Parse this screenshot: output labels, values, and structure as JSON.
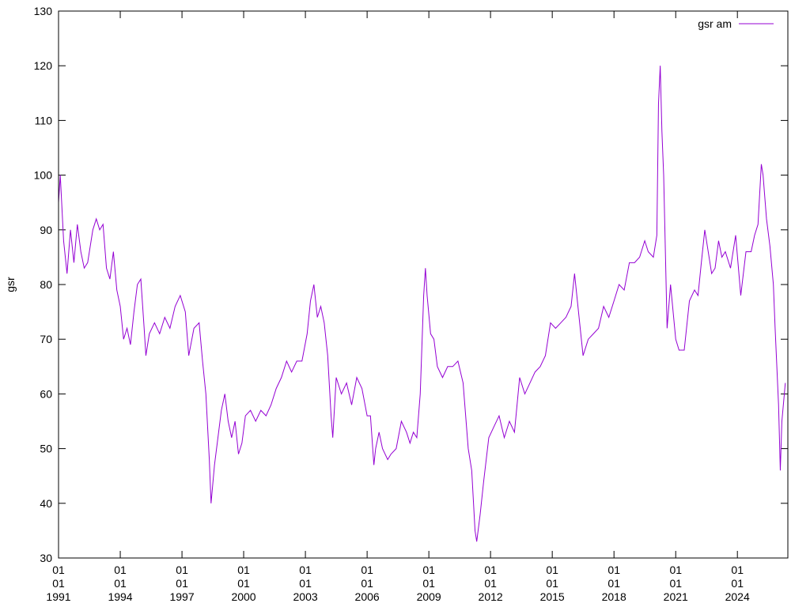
{
  "chart_data": {
    "type": "line",
    "ylabel": "gsr",
    "ylim": [
      30,
      130
    ],
    "yticks": [
      30,
      40,
      50,
      60,
      70,
      80,
      90,
      100,
      110,
      120,
      130
    ],
    "xlim": [
      "1991-01-01",
      "2026-06-15"
    ],
    "xticks": [
      {
        "value": "1991-01-01",
        "label": "01\n01\n1991"
      },
      {
        "value": "1994-01-01",
        "label": "01\n01\n1994"
      },
      {
        "value": "1997-01-01",
        "label": "01\n01\n1997"
      },
      {
        "value": "2000-01-01",
        "label": "01\n01\n2000"
      },
      {
        "value": "2003-01-01",
        "label": "01\n01\n2003"
      },
      {
        "value": "2006-01-01",
        "label": "01\n01\n2006"
      },
      {
        "value": "2009-01-01",
        "label": "01\n01\n2009"
      },
      {
        "value": "2012-01-01",
        "label": "01\n01\n2012"
      },
      {
        "value": "2015-01-01",
        "label": "01\n01\n2015"
      },
      {
        "value": "2018-01-01",
        "label": "01\n01\n2018"
      },
      {
        "value": "2021-01-01",
        "label": "01\n01\n2021"
      },
      {
        "value": "2024-01-01",
        "label": "01\n01\n2024"
      }
    ],
    "legend": "top-right",
    "x": [
      "1991-01",
      "1991-02",
      "1991-04",
      "1991-06",
      "1991-08",
      "1991-10",
      "1991-12",
      "1992-02",
      "1992-04",
      "1992-06",
      "1992-09",
      "1992-11",
      "1993-01",
      "1993-03",
      "1993-05",
      "1993-07",
      "1993-09",
      "1993-11",
      "1994-01",
      "1994-03",
      "1994-05",
      "1994-07",
      "1994-09",
      "1994-11",
      "1995-01",
      "1995-03",
      "1995-04",
      "1995-06",
      "1995-09",
      "1995-12",
      "1996-03",
      "1996-06",
      "1996-09",
      "1996-12",
      "1997-03",
      "1997-05",
      "1997-08",
      "1997-11",
      "1998-01",
      "1998-03",
      "1998-05",
      "1998-06",
      "1998-08",
      "1998-10",
      "1998-12",
      "1999-02",
      "1999-04",
      "1999-06",
      "1999-08",
      "1999-10",
      "1999-12",
      "2000-02",
      "2000-05",
      "2000-08",
      "2000-11",
      "2001-02",
      "2001-05",
      "2001-08",
      "2001-11",
      "2002-02",
      "2002-05",
      "2002-08",
      "2002-11",
      "2003-02",
      "2003-04",
      "2003-06",
      "2003-08",
      "2003-10",
      "2003-12",
      "2004-02",
      "2004-04",
      "2004-05",
      "2004-07",
      "2004-10",
      "2005-01",
      "2005-04",
      "2005-07",
      "2005-10",
      "2006-01",
      "2006-03",
      "2006-05",
      "2006-06",
      "2006-08",
      "2006-10",
      "2007-01",
      "2007-03",
      "2007-06",
      "2007-09",
      "2007-12",
      "2008-02",
      "2008-04",
      "2008-06",
      "2008-08",
      "2008-10",
      "2008-11",
      "2008-12",
      "2009-02",
      "2009-04",
      "2009-06",
      "2009-09",
      "2009-12",
      "2010-03",
      "2010-06",
      "2010-09",
      "2010-12",
      "2011-02",
      "2011-04",
      "2011-05",
      "2011-07",
      "2011-09",
      "2011-12",
      "2012-03",
      "2012-06",
      "2012-09",
      "2012-12",
      "2013-03",
      "2013-06",
      "2013-09",
      "2013-12",
      "2014-03",
      "2014-06",
      "2014-09",
      "2014-12",
      "2015-03",
      "2015-06",
      "2015-09",
      "2015-12",
      "2016-02",
      "2016-04",
      "2016-07",
      "2016-10",
      "2017-01",
      "2017-04",
      "2017-07",
      "2017-10",
      "2018-01",
      "2018-04",
      "2018-07",
      "2018-10",
      "2019-01",
      "2019-04",
      "2019-07",
      "2019-09",
      "2019-12",
      "2020-02",
      "2020-03",
      "2020-04",
      "2020-05",
      "2020-06",
      "2020-08",
      "2020-10",
      "2021-01",
      "2021-03",
      "2021-06",
      "2021-09",
      "2021-12",
      "2022-02",
      "2022-04",
      "2022-06",
      "2022-08",
      "2022-10",
      "2022-12",
      "2023-02",
      "2023-04",
      "2023-06",
      "2023-09",
      "2023-12",
      "2024-03",
      "2024-06",
      "2024-09",
      "2024-11",
      "2025-01",
      "2025-03",
      "2025-04",
      "2025-06",
      "2025-08",
      "2025-10",
      "2025-11",
      "2026-01",
      "2026-02",
      "2026-03",
      "2026-05"
    ],
    "series": [
      {
        "name": "gsr am",
        "color": "#9400d3",
        "values": [
          95,
          100,
          88,
          82,
          90,
          84,
          91,
          86,
          83,
          84,
          90,
          92,
          90,
          91,
          83,
          81,
          86,
          79,
          76,
          70,
          72,
          69,
          75,
          80,
          81,
          72,
          67,
          71,
          73,
          71,
          74,
          72,
          76,
          78,
          75,
          67,
          72,
          73,
          66,
          60,
          48,
          40,
          47,
          52,
          57,
          60,
          55,
          52,
          55,
          49,
          51,
          56,
          57,
          55,
          57,
          56,
          58,
          61,
          63,
          66,
          64,
          66,
          66,
          71,
          77,
          80,
          74,
          76,
          73,
          67,
          56,
          52,
          63,
          60,
          62,
          58,
          63,
          61,
          56,
          56,
          47,
          50,
          53,
          50,
          48,
          49,
          50,
          55,
          53,
          51,
          53,
          52,
          60,
          78,
          83,
          78,
          71,
          70,
          65,
          63,
          65,
          65,
          66,
          62,
          50,
          46,
          35,
          33,
          38,
          44,
          52,
          54,
          56,
          52,
          55,
          53,
          63,
          60,
          62,
          64,
          65,
          67,
          73,
          72,
          73,
          74,
          76,
          82,
          76,
          67,
          70,
          71,
          72,
          76,
          74,
          77,
          80,
          79,
          84,
          84,
          85,
          88,
          86,
          85,
          89,
          113,
          120,
          108,
          100,
          72,
          80,
          70,
          68,
          68,
          77,
          79,
          78,
          84,
          90,
          86,
          82,
          83,
          88,
          85,
          86,
          83,
          89,
          78,
          86,
          86,
          89,
          91,
          102,
          100,
          92,
          87,
          80,
          72,
          58,
          46,
          55,
          62
        ]
      }
    ]
  }
}
